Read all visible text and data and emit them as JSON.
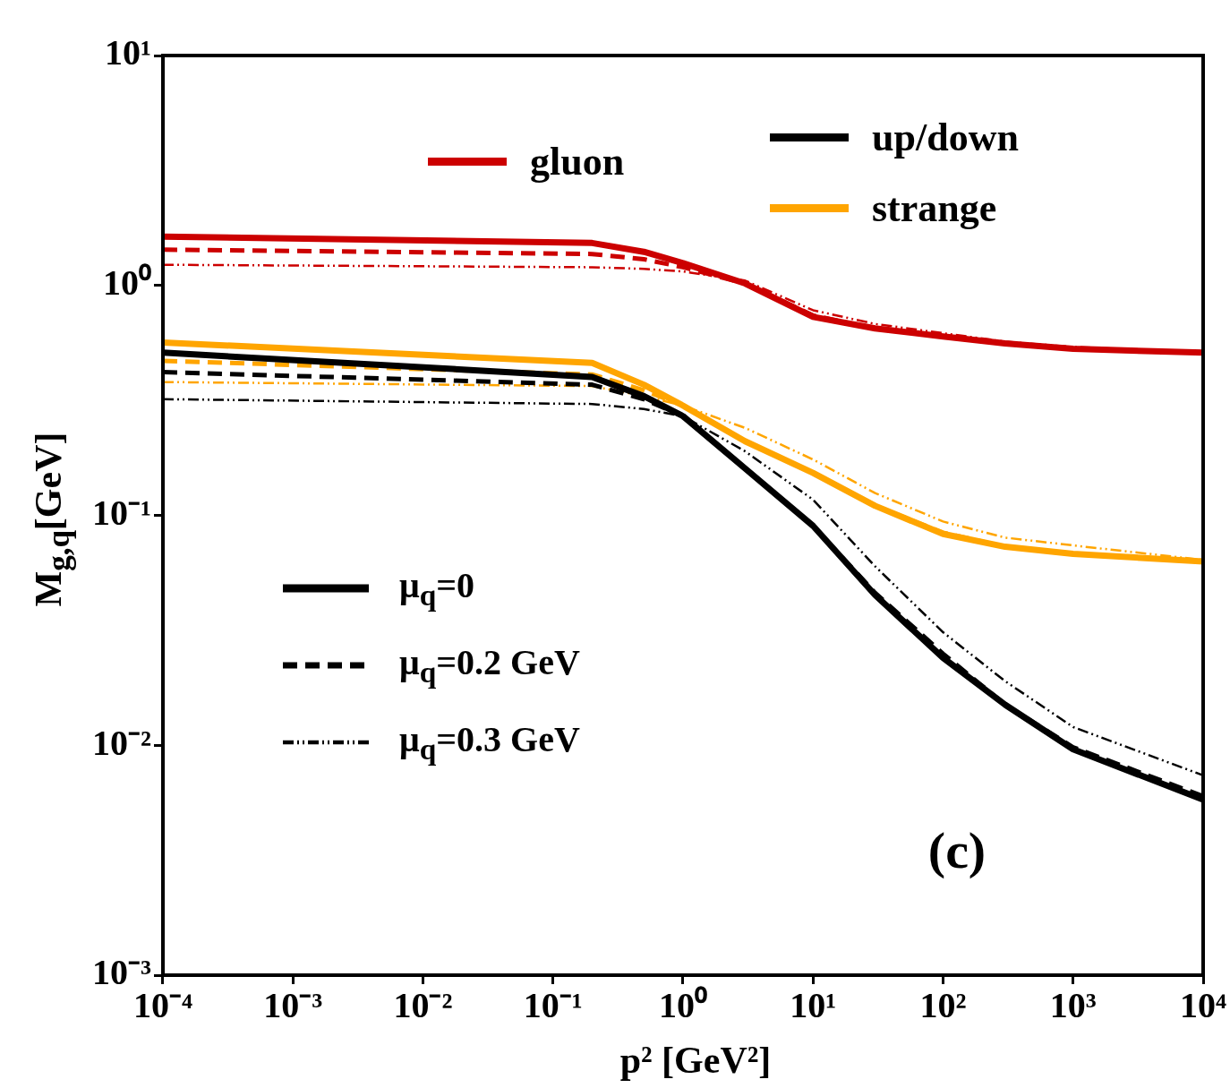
{
  "chart_data": {
    "type": "line",
    "xlabel": "p² [GeV²]",
    "ylabel": "M$_{g,q}$[GeV]",
    "log": "xy",
    "xlim": [
      0.0001,
      10000
    ],
    "ylim": [
      0.001,
      10
    ],
    "xticks": [
      {
        "value": 0.0001,
        "label": "10⁻⁴"
      },
      {
        "value": 0.001,
        "label": "10⁻³"
      },
      {
        "value": 0.01,
        "label": "10⁻²"
      },
      {
        "value": 0.1,
        "label": "10⁻¹"
      },
      {
        "value": 1,
        "label": "10⁰"
      },
      {
        "value": 10,
        "label": "10¹"
      },
      {
        "value": 100,
        "label": "10²"
      },
      {
        "value": 1000,
        "label": "10³"
      },
      {
        "value": 10000,
        "label": "10⁴"
      }
    ],
    "yticks": [
      {
        "value": 0.001,
        "label": "10⁻³"
      },
      {
        "value": 0.01,
        "label": "10⁻²"
      },
      {
        "value": 0.1,
        "label": "10⁻¹"
      },
      {
        "value": 1,
        "label": "10⁰"
      },
      {
        "value": 10,
        "label": "10¹"
      }
    ],
    "grid": false,
    "legend": "top right",
    "marker": "none",
    "x": [
      0.0001,
      0.2,
      0.5,
      1,
      3,
      10,
      30,
      100,
      300,
      1000,
      10000
    ],
    "series": [
      {
        "name": "gluon",
        "color": "#cc0000",
        "line_style": "solid",
        "values": [
          1.63,
          1.53,
          1.4,
          1.25,
          1.02,
          0.73,
          0.65,
          0.6,
          0.56,
          0.53,
          0.51
        ]
      },
      {
        "color": "#cc0000",
        "line_style": "dashed",
        "values": [
          1.43,
          1.37,
          1.3,
          1.2,
          1.02,
          0.74,
          0.65,
          0.6,
          0.56,
          0.53,
          0.51
        ]
      },
      {
        "color": "#cc0000",
        "line_style": "dotted",
        "values": [
          1.23,
          1.2,
          1.18,
          1.15,
          1.05,
          0.78,
          0.68,
          0.62,
          0.57,
          0.54,
          0.51
        ]
      },
      {
        "name": "up/down",
        "color": "#000000",
        "line_style": "solid",
        "values": [
          0.51,
          0.4,
          0.33,
          0.27,
          0.16,
          0.09,
          0.045,
          0.024,
          0.015,
          0.0096,
          0.0058
        ]
      },
      {
        "color": "#000000",
        "line_style": "dashed",
        "values": [
          0.42,
          0.37,
          0.32,
          0.27,
          0.16,
          0.09,
          0.046,
          0.025,
          0.015,
          0.0098,
          0.006
        ]
      },
      {
        "color": "#000000",
        "line_style": "dotted",
        "values": [
          0.32,
          0.305,
          0.29,
          0.27,
          0.19,
          0.117,
          0.06,
          0.031,
          0.019,
          0.012,
          0.0074
        ]
      },
      {
        "name": "strange",
        "color": "#ffa500",
        "line_style": "solid",
        "values": [
          0.565,
          0.46,
          0.37,
          0.3,
          0.21,
          0.153,
          0.11,
          0.083,
          0.073,
          0.068,
          0.063
        ]
      },
      {
        "color": "#ffa500",
        "line_style": "dashed",
        "values": [
          0.47,
          0.41,
          0.35,
          0.3,
          0.21,
          0.153,
          0.11,
          0.084,
          0.073,
          0.068,
          0.063
        ]
      },
      {
        "color": "#ffa500",
        "line_style": "dotted",
        "values": [
          0.38,
          0.365,
          0.33,
          0.3,
          0.24,
          0.175,
          0.125,
          0.094,
          0.08,
          0.074,
          0.064
        ]
      }
    ],
    "annotations": [
      "μ$_{q}$=0",
      "μ$_{q}$=0.2 GeV",
      "μ$_{q}$=0.3 GeV",
      "(c)"
    ]
  }
}
